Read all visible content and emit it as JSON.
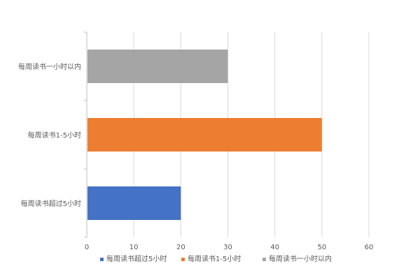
{
  "chart_data": {
    "type": "bar",
    "orientation": "horizontal",
    "categories": [
      "每周读书超过5小时",
      "每周读书1-5小时",
      "每周读书一小时以内"
    ],
    "values": [
      20,
      50,
      30
    ],
    "colors": [
      "#4472C4",
      "#ED7D31",
      "#A5A5A5"
    ],
    "xlim": [
      0,
      60
    ],
    "xticks": [
      0,
      10,
      20,
      30,
      40,
      50,
      60
    ],
    "grid": true,
    "legend_position": "bottom",
    "legend": [
      {
        "label": "每周读书超过5小时",
        "color": "#4472C4"
      },
      {
        "label": "每周读书1-5小时",
        "color": "#ED7D31"
      },
      {
        "label": "每周读书一小时以内",
        "color": "#A5A5A5"
      }
    ]
  }
}
